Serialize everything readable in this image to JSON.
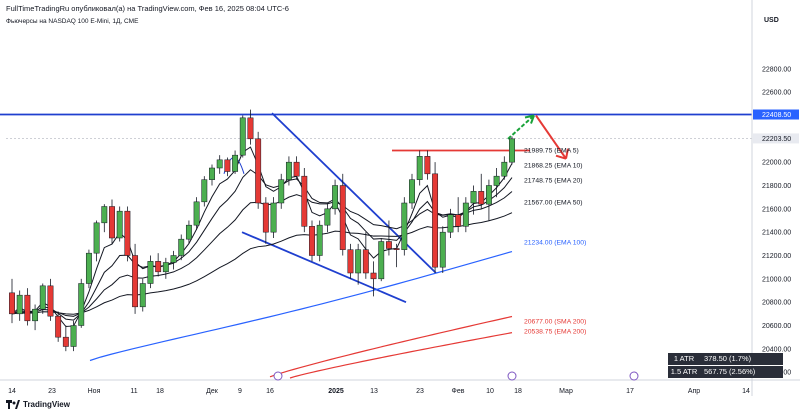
{
  "header": {
    "publisher_line": "FullTimeTradingRu опубликовал(а) на TradingView.com, Фев 16, 2025 08:04 UTC-6",
    "instrument_line": "Фьючерсы на NASDAQ 100 E-Mini, 1Д, CME",
    "currency": "USD",
    "brand": "TradingView"
  },
  "colors": {
    "bull": "#4caf50",
    "bear": "#e53935",
    "resistance": "#1f3fcf",
    "ema": "#131722",
    "ema100": "#2962ff",
    "sma200": "#e53935",
    "price_tag": "#2962ff"
  },
  "chart_data": {
    "type": "candlestick",
    "y_axis": {
      "ticks": [
        "22800.00",
        "22600.00",
        "22200.00",
        "22000.00",
        "21800.00",
        "21600.00",
        "21400.00",
        "21200.00",
        "21000.00",
        "20800.00",
        "20600.00",
        "20400.00",
        "20200.00"
      ],
      "range": [
        20150,
        23150
      ]
    },
    "price_tags": [
      {
        "label": "22408.50",
        "value": 22408.5,
        "style": "blue"
      },
      {
        "label": "22203.50",
        "value": 22203.5,
        "style": "plain"
      }
    ],
    "x_axis": {
      "ticks": [
        "14",
        "23",
        "Ноя",
        "11",
        "18",
        "Дек",
        "9",
        "16",
        "2025",
        "13",
        "23",
        "Фев",
        "10",
        "18",
        "Мар",
        "17",
        "Апр",
        "14"
      ]
    },
    "candles": [
      [
        20880,
        21000,
        20620,
        20700
      ],
      [
        20700,
        20900,
        20640,
        20860
      ],
      [
        20860,
        20920,
        20600,
        20640
      ],
      [
        20640,
        20780,
        20560,
        20740
      ],
      [
        20740,
        20960,
        20700,
        20940
      ],
      [
        20940,
        21000,
        20640,
        20680
      ],
      [
        20680,
        20720,
        20460,
        20500
      ],
      [
        20500,
        20600,
        20380,
        20420
      ],
      [
        20420,
        20640,
        20380,
        20600
      ],
      [
        20600,
        21000,
        20580,
        20960
      ],
      [
        20960,
        21250,
        20920,
        21220
      ],
      [
        21220,
        21500,
        21150,
        21480
      ],
      [
        21480,
        21640,
        21400,
        21620
      ],
      [
        21620,
        21680,
        21300,
        21350
      ],
      [
        21350,
        21620,
        21320,
        21580
      ],
      [
        21580,
        21620,
        21150,
        21200
      ],
      [
        21200,
        21300,
        20700,
        20760
      ],
      [
        20760,
        21000,
        20720,
        20960
      ],
      [
        20960,
        21200,
        20920,
        21150
      ],
      [
        21150,
        21220,
        21020,
        21060
      ],
      [
        21060,
        21180,
        21000,
        21140
      ],
      [
        21140,
        21240,
        21080,
        21200
      ],
      [
        21200,
        21380,
        21160,
        21340
      ],
      [
        21340,
        21500,
        21300,
        21460
      ],
      [
        21460,
        21700,
        21420,
        21660
      ],
      [
        21660,
        21880,
        21620,
        21850
      ],
      [
        21850,
        21980,
        21800,
        21950
      ],
      [
        21950,
        22060,
        21900,
        22020
      ],
      [
        22020,
        22040,
        21880,
        21920
      ],
      [
        21920,
        22100,
        21900,
        22060
      ],
      [
        22060,
        22400,
        22040,
        22380
      ],
      [
        22380,
        22450,
        22150,
        22200
      ],
      [
        22200,
        22260,
        21600,
        21650
      ],
      [
        21650,
        21700,
        21300,
        21400
      ],
      [
        21400,
        21700,
        21350,
        21650
      ],
      [
        21650,
        21900,
        21600,
        21850
      ],
      [
        21850,
        22050,
        21800,
        22000
      ],
      [
        22000,
        22050,
        21850,
        21880
      ],
      [
        21880,
        21950,
        21400,
        21450
      ],
      [
        21450,
        21500,
        21150,
        21200
      ],
      [
        21200,
        21500,
        21150,
        21460
      ],
      [
        21460,
        21650,
        21400,
        21600
      ],
      [
        21600,
        21850,
        21550,
        21800
      ],
      [
        21800,
        21900,
        21200,
        21250
      ],
      [
        21250,
        21300,
        21000,
        21050
      ],
      [
        21050,
        21300,
        20950,
        21250
      ],
      [
        21250,
        21400,
        21000,
        21050
      ],
      [
        21050,
        21150,
        20850,
        21000
      ],
      [
        21000,
        21350,
        20980,
        21320
      ],
      [
        21320,
        21500,
        21200,
        21260
      ],
      [
        21260,
        21300,
        21100,
        21250
      ],
      [
        21250,
        21700,
        21200,
        21650
      ],
      [
        21650,
        21900,
        21600,
        21850
      ],
      [
        21850,
        22100,
        21800,
        22050
      ],
      [
        22050,
        22100,
        21850,
        21900
      ],
      [
        21900,
        22000,
        21050,
        21100
      ],
      [
        21100,
        21450,
        21050,
        21400
      ],
      [
        21400,
        21600,
        21350,
        21550
      ],
      [
        21550,
        21700,
        21400,
        21450
      ],
      [
        21450,
        21700,
        21400,
        21650
      ],
      [
        21650,
        21800,
        21550,
        21750
      ],
      [
        21750,
        21900,
        21600,
        21640
      ],
      [
        21640,
        21850,
        21500,
        21800
      ],
      [
        21800,
        21950,
        21700,
        21880
      ],
      [
        21880,
        22050,
        21850,
        22000
      ],
      [
        22000,
        22220,
        21980,
        22200
      ]
    ],
    "indicators": [
      {
        "name": "EMA 5",
        "label": "21989.75 (EMA 5)",
        "value": 21989.75,
        "color": "#131722",
        "period": 5
      },
      {
        "name": "EMA 10",
        "label": "21868.25 (EMA 10)",
        "value": 21868.25,
        "color": "#131722",
        "period": 10
      },
      {
        "name": "EMA 20",
        "label": "21748.75 (EMA 20)",
        "value": 21748.75,
        "color": "#131722",
        "period": 20
      },
      {
        "name": "EMA 50",
        "label": "21567.00 (EMA 50)",
        "value": 21567.0,
        "color": "#131722",
        "period": 50
      },
      {
        "name": "EMA 100",
        "label": "21234.00 (EMA 100)",
        "value": 21234.0,
        "color": "#2962ff",
        "period": 100
      },
      {
        "name": "SMA 200",
        "label": "20677.00 (SMA 200)",
        "value": 20677.0,
        "color": "#e53935",
        "period": 200
      },
      {
        "name": "EMA 200",
        "label": "20538.75 (EMA 200)",
        "value": 20538.75,
        "color": "#e53935",
        "period": 200
      }
    ],
    "drawings": {
      "resistance_level": 22408.5,
      "breakout_level": 22100,
      "wedge_upper": [
        [
          22420,
          0
        ],
        [
          21050,
          1
        ]
      ],
      "wedge_lower": [
        [
          21400,
          0
        ],
        [
          20800,
          1
        ]
      ]
    },
    "atr": [
      {
        "name": "1 ATR",
        "value": "378.50 (1.7%)"
      },
      {
        "name": "1.5 ATR",
        "value": "567.75 (2.56%)"
      }
    ],
    "grid": false
  }
}
